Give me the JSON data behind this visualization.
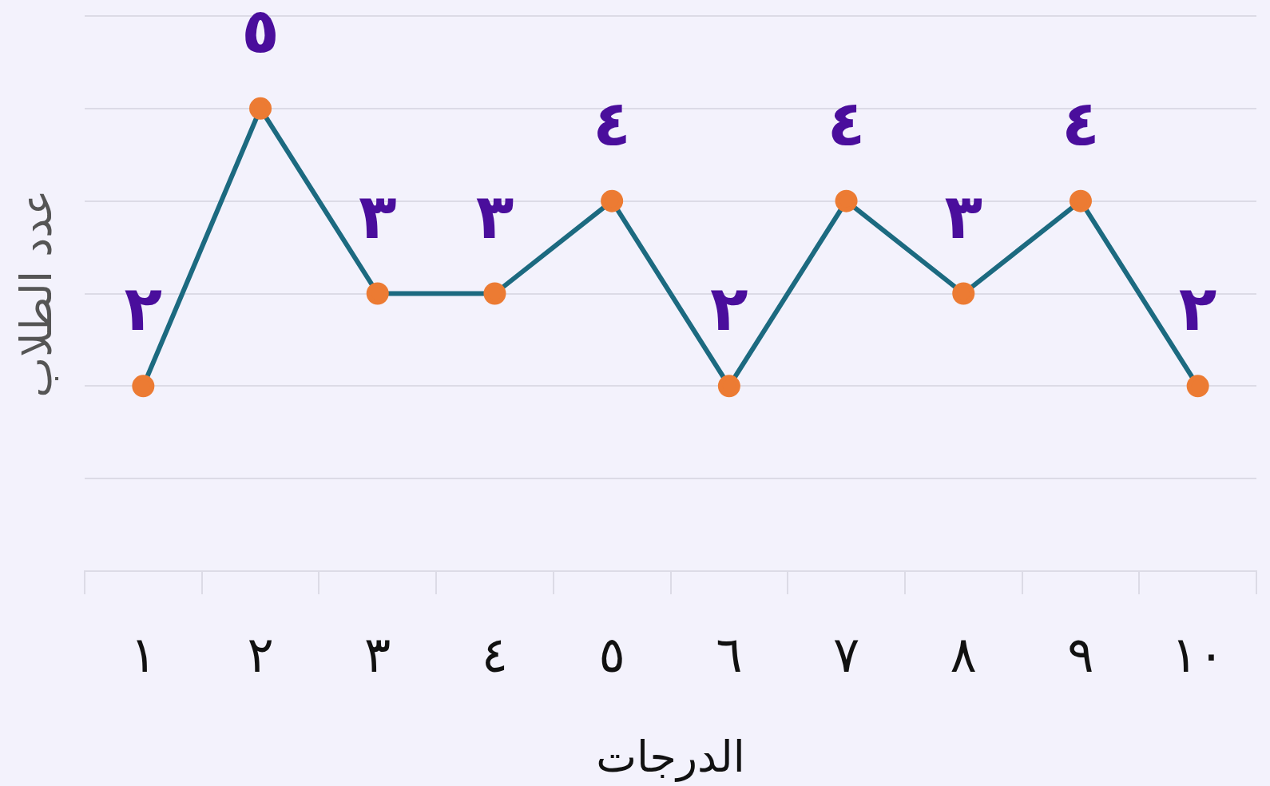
{
  "chart_data": {
    "type": "line",
    "xlabel": "الدرجات",
    "ylabel": "عدد الطلاب",
    "categories": [
      "١",
      "٢",
      "٣",
      "٤",
      "٥",
      "٦",
      "٧",
      "٨",
      "٩",
      "١٠"
    ],
    "series": [
      {
        "color": "#1c6a80",
        "colors": [
          "#ec7b33",
          "#ec7b33",
          "#ec7b33",
          "#ec7b33",
          "#ec7b33",
          "#ec7b33",
          "#ec7b33",
          "#ec7b33",
          "#ec7b33",
          "#ec7b33"
        ],
        "values": [
          2,
          5,
          3,
          3,
          4,
          2,
          4,
          3,
          4,
          2
        ],
        "value_labels": [
          "٢",
          "٥",
          "٣",
          "٣",
          "٤",
          "٢",
          "٤",
          "٣",
          "٤",
          "٢"
        ]
      }
    ],
    "ylim": [
      0,
      6
    ],
    "yticks": [
      {
        "value": 0,
        "label": null
      },
      {
        "value": 1,
        "label": null
      },
      {
        "value": 2,
        "label": null
      },
      {
        "value": 3,
        "label": null
      },
      {
        "value": 4,
        "label": null
      },
      {
        "value": 5,
        "label": null
      },
      {
        "value": 6,
        "label": null
      }
    ],
    "grid": "y",
    "tick_labels": "x",
    "marker": "circle",
    "line_style": "solid"
  }
}
